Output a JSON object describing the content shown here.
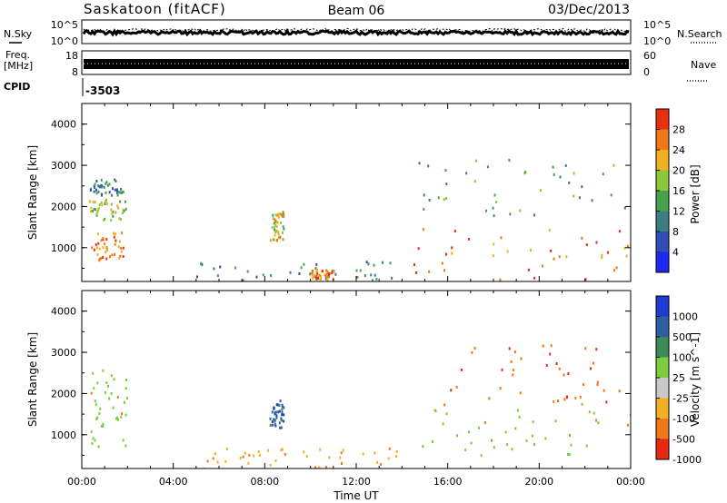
{
  "header": {
    "station": "Saskatoon (fitACF)",
    "beam": "Beam 06",
    "date": "03/Dec/2013"
  },
  "top_panels": {
    "nsky_label": "N.Sky",
    "nsearch_label": "N.Search",
    "freq_label_1": "Freq.",
    "freq_label_2": "[MHz]",
    "nave_label": "Nave",
    "cpid_label": "CPID",
    "cpid_value": "-3503",
    "noise_ticks_left": [
      "10^5",
      "10^0"
    ],
    "noise_ticks_right": [
      "10^5",
      "10^0"
    ],
    "freq_ticks_left": [
      "18",
      "8"
    ],
    "nave_ticks_right": [
      "60",
      "0"
    ]
  },
  "chart_data": [
    {
      "type": "heatmap",
      "name": "power",
      "xlabel": "",
      "ylabel": "Slant Range [km]",
      "xlim": [
        0,
        24
      ],
      "ylim": [
        180,
        4500
      ],
      "y_ticks": [
        "1000",
        "2000",
        "3000",
        "4000"
      ],
      "colorbar": {
        "label": "Power [dB]",
        "range": [
          0,
          32
        ],
        "ticks": [
          "4",
          "8",
          "12",
          "16",
          "20",
          "24",
          "28"
        ],
        "colors": [
          "#1e28f0",
          "#2f4fb4",
          "#3a7e83",
          "#47a14c",
          "#8cc83c",
          "#f0b020",
          "#f07818",
          "#e83010"
        ]
      },
      "regions": [
        {
          "x": [
            0.3,
            1.8
          ],
          "y": [
            2300,
            2700
          ],
          "v": 10
        },
        {
          "x": [
            0.3,
            1.9
          ],
          "y": [
            1700,
            2200
          ],
          "v": 18
        },
        {
          "x": [
            0.3,
            2.0
          ],
          "y": [
            700,
            1400
          ],
          "v": 26
        },
        {
          "x": [
            8.2,
            8.8
          ],
          "y": [
            1200,
            1900
          ],
          "v": 20
        },
        {
          "x": [
            5.0,
            14.0
          ],
          "y": [
            200,
            700
          ],
          "v": 10
        },
        {
          "x": [
            10.0,
            11.0
          ],
          "y": [
            250,
            500
          ],
          "v": 26
        },
        {
          "x": [
            14.5,
            24.0
          ],
          "y": [
            1800,
            3200
          ],
          "v": 14
        },
        {
          "x": [
            14.5,
            24.0
          ],
          "y": [
            250,
            1500
          ],
          "v": 26
        }
      ]
    },
    {
      "type": "heatmap",
      "name": "velocity",
      "xlabel": "Time UT",
      "ylabel": "Slant Range [km]",
      "xlim": [
        0,
        24
      ],
      "ylim": [
        180,
        4500
      ],
      "x_ticks": [
        "00:00",
        "04:00",
        "08:00",
        "12:00",
        "16:00",
        "20:00",
        "00:00"
      ],
      "y_ticks": [
        "1000",
        "2000",
        "3000",
        "4000"
      ],
      "colorbar": {
        "label": "Velocity [m s^-1]",
        "ticks": [
          "1000",
          "500",
          "100",
          "25",
          "-25",
          "-100",
          "-500",
          "-1000"
        ],
        "colors": [
          "#1e3cd0",
          "#2f5fa0",
          "#3c8c5a",
          "#7ccc3c",
          "#c8c8c8",
          "#f0b020",
          "#f07818",
          "#e82810"
        ]
      },
      "regions": [
        {
          "x": [
            0.3,
            2.0
          ],
          "y": [
            700,
            2600
          ],
          "v": 25
        },
        {
          "x": [
            8.2,
            8.8
          ],
          "y": [
            1200,
            1900
          ],
          "v": 500
        },
        {
          "x": [
            5.0,
            14.0
          ],
          "y": [
            200,
            700
          ],
          "v": -100
        },
        {
          "x": [
            14.5,
            24.0
          ],
          "y": [
            500,
            1800
          ],
          "v": 25
        },
        {
          "x": [
            16.0,
            23.5
          ],
          "y": [
            1800,
            3200
          ],
          "v": -500
        }
      ]
    }
  ]
}
